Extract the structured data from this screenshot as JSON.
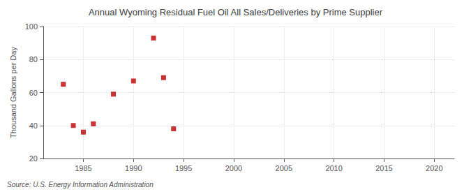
{
  "chart_data": {
    "type": "scatter",
    "title": "Annual Wyoming Residual Fuel Oil All Sales/Deliveries by Prime Supplier",
    "ylabel": "Thousand Gallons per Day",
    "source": "Source: U.S. Energy Information Administration",
    "x": [
      1983,
      1984,
      1985,
      1986,
      1988,
      1990,
      1992,
      1993,
      1994
    ],
    "values": [
      65,
      40,
      36,
      41,
      59,
      67,
      93,
      69,
      38
    ],
    "color": "#bb0000",
    "marker": "square",
    "xlim": [
      1981,
      2022
    ],
    "xticks": [
      1985,
      1990,
      1995,
      2000,
      2005,
      2010,
      2015,
      2020
    ],
    "ylim": [
      20,
      100
    ],
    "yticks": [
      20,
      40,
      60,
      80,
      100
    ],
    "grid": true
  }
}
